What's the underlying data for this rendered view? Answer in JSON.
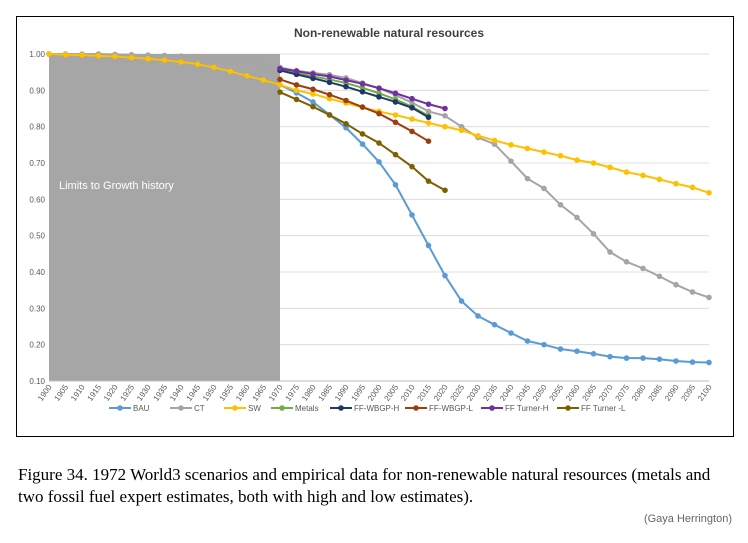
{
  "chart_data": {
    "type": "line",
    "title": "Non-renewable natural resources",
    "annotation": "Limits to Growth history",
    "shaded_range": [
      1900,
      1970
    ],
    "xlabel": "",
    "ylabel": "",
    "ylim": [
      0.1,
      1.0
    ],
    "yticks": [
      "0.10",
      "0.20",
      "0.30",
      "0.40",
      "0.50",
      "0.60",
      "0.70",
      "0.80",
      "0.90",
      "1.00"
    ],
    "x": [
      1900,
      1905,
      1910,
      1915,
      1920,
      1925,
      1930,
      1935,
      1940,
      1945,
      1950,
      1955,
      1960,
      1965,
      1970,
      1975,
      1980,
      1985,
      1990,
      1995,
      2000,
      2005,
      2010,
      2015,
      2020,
      2025,
      2030,
      2035,
      2040,
      2045,
      2050,
      2055,
      2060,
      2065,
      2070,
      2075,
      2080,
      2085,
      2090,
      2095,
      2100
    ],
    "grid": true,
    "legend_position": "bottom",
    "series": [
      {
        "name": "BAU",
        "color": "#5b9bd5",
        "values": [
          1.0,
          0.998,
          0.997,
          0.995,
          0.993,
          0.99,
          0.987,
          0.983,
          0.978,
          0.972,
          0.963,
          0.952,
          0.94,
          0.928,
          0.915,
          0.893,
          0.868,
          0.833,
          0.797,
          0.752,
          0.703,
          0.64,
          0.557,
          0.473,
          0.39,
          0.32,
          0.279,
          0.255,
          0.232,
          0.21,
          0.2,
          0.188,
          0.182,
          0.175,
          0.167,
          0.163,
          0.163,
          0.16,
          0.155,
          0.152,
          0.151
        ]
      },
      {
        "name": "CT",
        "color": "#a5a5a5",
        "values": [
          1.0,
          1.0,
          1.0,
          1.0,
          0.999,
          0.998,
          0.997,
          0.996,
          0.994,
          0.991,
          0.988,
          0.984,
          0.979,
          0.972,
          0.963,
          0.954,
          0.948,
          0.943,
          0.934,
          0.92,
          0.906,
          0.887,
          0.866,
          0.842,
          0.83,
          0.8,
          0.77,
          0.752,
          0.705,
          0.657,
          0.63,
          0.585,
          0.55,
          0.505,
          0.455,
          0.428,
          0.41,
          0.388,
          0.365,
          0.345,
          0.33
        ]
      },
      {
        "name": "SW",
        "color": "#ffc000",
        "values": [
          1.0,
          0.998,
          0.997,
          0.995,
          0.993,
          0.99,
          0.987,
          0.983,
          0.978,
          0.972,
          0.963,
          0.952,
          0.94,
          0.928,
          0.915,
          0.9,
          0.89,
          0.877,
          0.865,
          0.853,
          0.842,
          0.832,
          0.821,
          0.81,
          0.8,
          0.79,
          0.775,
          0.762,
          0.75,
          0.74,
          0.73,
          0.72,
          0.708,
          0.7,
          0.688,
          0.675,
          0.666,
          0.655,
          0.643,
          0.633,
          0.618
        ]
      },
      {
        "name": "Metals",
        "color": "#70ad47",
        "values": [
          null,
          null,
          null,
          null,
          null,
          null,
          null,
          null,
          null,
          null,
          null,
          null,
          null,
          null,
          0.958,
          0.948,
          0.938,
          0.93,
          0.92,
          0.907,
          0.892,
          0.875,
          0.855,
          0.83,
          null,
          null,
          null,
          null,
          null,
          null,
          null,
          null,
          null,
          null,
          null,
          null,
          null,
          null,
          null,
          null,
          null
        ]
      },
      {
        "name": "FF-WBGP-H",
        "color": "#1f3864",
        "values": [
          null,
          null,
          null,
          null,
          null,
          null,
          null,
          null,
          null,
          null,
          null,
          null,
          null,
          null,
          0.955,
          0.944,
          0.933,
          0.922,
          0.91,
          0.896,
          0.882,
          0.868,
          0.852,
          0.826,
          null,
          null,
          null,
          null,
          null,
          null,
          null,
          null,
          null,
          null,
          null,
          null,
          null,
          null,
          null,
          null,
          null
        ]
      },
      {
        "name": "FF-WBGP-L",
        "color": "#9c3f0e",
        "values": [
          null,
          null,
          null,
          null,
          null,
          null,
          null,
          null,
          null,
          null,
          null,
          null,
          null,
          null,
          0.93,
          0.915,
          0.903,
          0.888,
          0.872,
          0.854,
          0.836,
          0.812,
          0.787,
          0.76,
          null,
          null,
          null,
          null,
          null,
          null,
          null,
          null,
          null,
          null,
          null,
          null,
          null,
          null,
          null,
          null,
          null
        ]
      },
      {
        "name": "FF Turner-H",
        "color": "#7030a0",
        "values": [
          null,
          null,
          null,
          null,
          null,
          null,
          null,
          null,
          null,
          null,
          null,
          null,
          null,
          null,
          0.96,
          0.953,
          0.945,
          0.938,
          0.928,
          0.918,
          0.906,
          0.892,
          0.877,
          0.862,
          0.85,
          null,
          null,
          null,
          null,
          null,
          null,
          null,
          null,
          null,
          null,
          null,
          null,
          null,
          null,
          null,
          null
        ]
      },
      {
        "name": "FF Turner -L",
        "color": "#7f6000",
        "values": [
          null,
          null,
          null,
          null,
          null,
          null,
          null,
          null,
          null,
          null,
          null,
          null,
          null,
          null,
          0.895,
          0.875,
          0.855,
          0.832,
          0.808,
          0.78,
          0.755,
          0.723,
          0.69,
          0.65,
          0.625,
          null,
          null,
          null,
          null,
          null,
          null,
          null,
          null,
          null,
          null,
          null,
          null,
          null,
          null,
          null,
          null
        ]
      }
    ]
  },
  "caption": "Figure 34. 1972 World3 scenarios and empirical data for non-renewable natural resources (metals and two fossil fuel expert estimates, both with high and low estimates).",
  "credit": "(Gaya Herrington)"
}
